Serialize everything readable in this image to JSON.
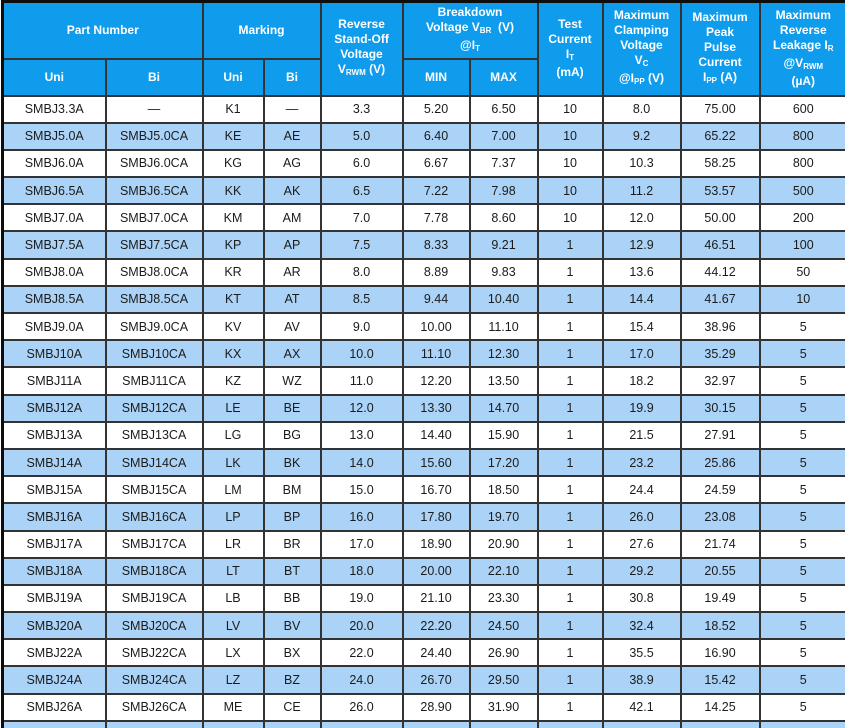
{
  "colors": {
    "header_bg": "#0f9cec",
    "alt_row_bg": "#aad3f7",
    "header_text": "#ffffff",
    "body_text": "#1b1b1b",
    "grid_border": "#333333",
    "outer_border": "#0d0d0d"
  },
  "header": {
    "part_number": "Part Number",
    "marking": "Marking",
    "uni_part": "Uni",
    "bi_part": "Bi",
    "uni_mark": "Uni",
    "bi_mark": "Bi",
    "min": "MIN",
    "max": "MAX",
    "rich": {
      "vrwm": [
        {
          "t": "Reverse"
        },
        {
          "br": 1
        },
        {
          "t": "Stand-Off"
        },
        {
          "br": 1
        },
        {
          "t": "Voltage"
        },
        {
          "br": 1
        },
        {
          "t": "V"
        },
        {
          "s": "RWM"
        },
        {
          "t": " (V)"
        }
      ],
      "breakdown": [
        {
          "t": "Breakdown"
        },
        {
          "br": 1
        },
        {
          "t": "Voltage V"
        },
        {
          "s": "BR"
        },
        {
          "t": "  (V)"
        },
        {
          "br": 1
        },
        {
          "t": "@I"
        },
        {
          "s": "T"
        }
      ],
      "test_current": [
        {
          "t": "Test"
        },
        {
          "br": 1
        },
        {
          "t": "Current"
        },
        {
          "br": 1
        },
        {
          "t": "I"
        },
        {
          "s": "T"
        },
        {
          "br": 1
        },
        {
          "t": "(mA)"
        }
      ],
      "clamping": [
        {
          "t": "Maximum"
        },
        {
          "br": 1
        },
        {
          "t": "Clamping"
        },
        {
          "br": 1
        },
        {
          "t": "Voltage"
        },
        {
          "br": 1
        },
        {
          "t": "V"
        },
        {
          "s": "C"
        },
        {
          "br": 1
        },
        {
          "t": "@I"
        },
        {
          "s": "PP"
        },
        {
          "t": " (V)"
        }
      ],
      "peak_pulse": [
        {
          "t": "Maximum"
        },
        {
          "br": 1
        },
        {
          "t": "Peak"
        },
        {
          "br": 1
        },
        {
          "t": "Pulse"
        },
        {
          "br": 1
        },
        {
          "t": "Current"
        },
        {
          "br": 1
        },
        {
          "t": "I"
        },
        {
          "s": "PP"
        },
        {
          "t": " (A)"
        }
      ],
      "leakage": [
        {
          "t": "Maximum"
        },
        {
          "br": 1
        },
        {
          "t": "Reverse"
        },
        {
          "br": 1
        },
        {
          "t": "Leakage I"
        },
        {
          "s": "R"
        },
        {
          "br": 1
        },
        {
          "t": "@V"
        },
        {
          "s": "RWM"
        },
        {
          "br": 1
        },
        {
          "t": "(µA)"
        }
      ]
    }
  },
  "rows": [
    [
      "SMBJ3.3A",
      "—",
      "K1",
      "—",
      "3.3",
      "5.20",
      "6.50",
      "10",
      "8.0",
      "75.00",
      "600"
    ],
    [
      "SMBJ5.0A",
      "SMBJ5.0CA",
      "KE",
      "AE",
      "5.0",
      "6.40",
      "7.00",
      "10",
      "9.2",
      "65.22",
      "800"
    ],
    [
      "SMBJ6.0A",
      "SMBJ6.0CA",
      "KG",
      "AG",
      "6.0",
      "6.67",
      "7.37",
      "10",
      "10.3",
      "58.25",
      "800"
    ],
    [
      "SMBJ6.5A",
      "SMBJ6.5CA",
      "KK",
      "AK",
      "6.5",
      "7.22",
      "7.98",
      "10",
      "11.2",
      "53.57",
      "500"
    ],
    [
      "SMBJ7.0A",
      "SMBJ7.0CA",
      "KM",
      "AM",
      "7.0",
      "7.78",
      "8.60",
      "10",
      "12.0",
      "50.00",
      "200"
    ],
    [
      "SMBJ7.5A",
      "SMBJ7.5CA",
      "KP",
      "AP",
      "7.5",
      "8.33",
      "9.21",
      "1",
      "12.9",
      "46.51",
      "100"
    ],
    [
      "SMBJ8.0A",
      "SMBJ8.0CA",
      "KR",
      "AR",
      "8.0",
      "8.89",
      "9.83",
      "1",
      "13.6",
      "44.12",
      "50"
    ],
    [
      "SMBJ8.5A",
      "SMBJ8.5CA",
      "KT",
      "AT",
      "8.5",
      "9.44",
      "10.40",
      "1",
      "14.4",
      "41.67",
      "10"
    ],
    [
      "SMBJ9.0A",
      "SMBJ9.0CA",
      "KV",
      "AV",
      "9.0",
      "10.00",
      "11.10",
      "1",
      "15.4",
      "38.96",
      "5"
    ],
    [
      "SMBJ10A",
      "SMBJ10CA",
      "KX",
      "AX",
      "10.0",
      "11.10",
      "12.30",
      "1",
      "17.0",
      "35.29",
      "5"
    ],
    [
      "SMBJ11A",
      "SMBJ11CA",
      "KZ",
      "WZ",
      "11.0",
      "12.20",
      "13.50",
      "1",
      "18.2",
      "32.97",
      "5"
    ],
    [
      "SMBJ12A",
      "SMBJ12CA",
      "LE",
      "BE",
      "12.0",
      "13.30",
      "14.70",
      "1",
      "19.9",
      "30.15",
      "5"
    ],
    [
      "SMBJ13A",
      "SMBJ13CA",
      "LG",
      "BG",
      "13.0",
      "14.40",
      "15.90",
      "1",
      "21.5",
      "27.91",
      "5"
    ],
    [
      "SMBJ14A",
      "SMBJ14CA",
      "LK",
      "BK",
      "14.0",
      "15.60",
      "17.20",
      "1",
      "23.2",
      "25.86",
      "5"
    ],
    [
      "SMBJ15A",
      "SMBJ15CA",
      "LM",
      "BM",
      "15.0",
      "16.70",
      "18.50",
      "1",
      "24.4",
      "24.59",
      "5"
    ],
    [
      "SMBJ16A",
      "SMBJ16CA",
      "LP",
      "BP",
      "16.0",
      "17.80",
      "19.70",
      "1",
      "26.0",
      "23.08",
      "5"
    ],
    [
      "SMBJ17A",
      "SMBJ17CA",
      "LR",
      "BR",
      "17.0",
      "18.90",
      "20.90",
      "1",
      "27.6",
      "21.74",
      "5"
    ],
    [
      "SMBJ18A",
      "SMBJ18CA",
      "LT",
      "BT",
      "18.0",
      "20.00",
      "22.10",
      "1",
      "29.2",
      "20.55",
      "5"
    ],
    [
      "SMBJ19A",
      "SMBJ19CA",
      "LB",
      "BB",
      "19.0",
      "21.10",
      "23.30",
      "1",
      "30.8",
      "19.49",
      "5"
    ],
    [
      "SMBJ20A",
      "SMBJ20CA",
      "LV",
      "BV",
      "20.0",
      "22.20",
      "24.50",
      "1",
      "32.4",
      "18.52",
      "5"
    ],
    [
      "SMBJ22A",
      "SMBJ22CA",
      "LX",
      "BX",
      "22.0",
      "24.40",
      "26.90",
      "1",
      "35.5",
      "16.90",
      "5"
    ],
    [
      "SMBJ24A",
      "SMBJ24CA",
      "LZ",
      "BZ",
      "24.0",
      "26.70",
      "29.50",
      "1",
      "38.9",
      "15.42",
      "5"
    ],
    [
      "SMBJ26A",
      "SMBJ26CA",
      "ME",
      "CE",
      "26.0",
      "28.90",
      "31.90",
      "1",
      "42.1",
      "14.25",
      "5"
    ]
  ]
}
